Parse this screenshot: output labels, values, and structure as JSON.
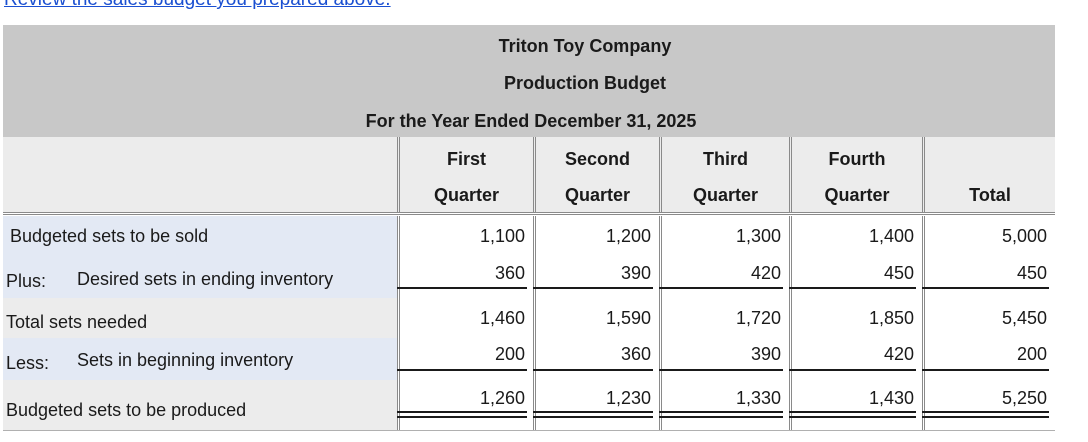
{
  "link": {
    "text": "Review the sales budget you prepared above."
  },
  "header": {
    "company": "Triton Toy Company",
    "title": "Production Budget",
    "period": "For the Year Ended December 31, 2025"
  },
  "columns": [
    {
      "line1": "First",
      "line2": "Quarter"
    },
    {
      "line1": "Second",
      "line2": "Quarter"
    },
    {
      "line1": "Third",
      "line2": "Quarter"
    },
    {
      "line1": "Fourth",
      "line2": "Quarter"
    },
    {
      "line1": "",
      "line2": "Total"
    }
  ],
  "rows": {
    "sold": {
      "label": "Budgeted sets to be sold",
      "values": [
        "1,100",
        "1,200",
        "1,300",
        "1,400",
        "5,000"
      ]
    },
    "ending": {
      "prefix": "Plus:",
      "label": "Desired sets in ending inventory",
      "values": [
        "360",
        "390",
        "420",
        "450",
        "450"
      ]
    },
    "needed": {
      "label": "Total sets needed",
      "values": [
        "1,460",
        "1,590",
        "1,720",
        "1,850",
        "5,450"
      ]
    },
    "beginning": {
      "prefix": "Less:",
      "label": "Sets in beginning inventory",
      "values": [
        "200",
        "360",
        "390",
        "420",
        "200"
      ]
    },
    "produced": {
      "label": "Budgeted sets to be produced",
      "values": [
        "1,260",
        "1,230",
        "1,330",
        "1,430",
        "5,250"
      ]
    }
  }
}
